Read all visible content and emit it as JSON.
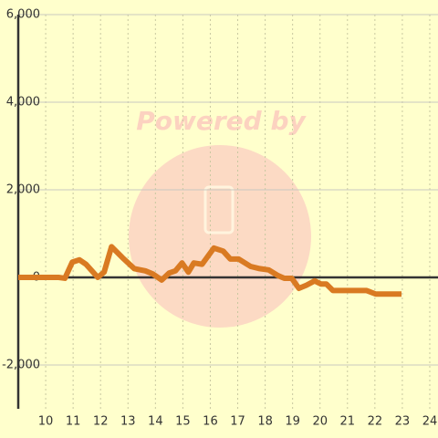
{
  "chart_data": {
    "type": "line",
    "watermark": "Powered by",
    "xlim": [
      9,
      24.3
    ],
    "xticks": [
      10,
      11,
      12,
      13,
      14,
      15,
      16,
      17,
      18,
      19,
      20,
      21,
      22,
      23,
      24
    ],
    "ylim": [
      -3000,
      6000
    ],
    "yticks": [
      {
        "value": -2000,
        "label": "-2,000"
      },
      0,
      {
        "value": 2000,
        "label": "2,000"
      },
      {
        "value": 4000,
        "label": "4,000"
      },
      {
        "value": 6000,
        "label": "6,000"
      }
    ],
    "grid": true,
    "series": [
      {
        "color": "#d97a22",
        "x": [
          9,
          10.47,
          10.7,
          10.97,
          11.23,
          11.47,
          11.9,
          12.13,
          12.4,
          12.8,
          13.23,
          13.63,
          13.9,
          14.23,
          14.5,
          14.73,
          14.97,
          15.2,
          15.4,
          15.7,
          16.13,
          16.47,
          16.73,
          17.03,
          17.47,
          17.8,
          18.13,
          18.47,
          18.7,
          18.97,
          19.23,
          19.5,
          19.8,
          20.03,
          20.23,
          20.47,
          20.97,
          21.7,
          22.03,
          22.97
        ],
        "values": [
          0,
          0,
          -20,
          350,
          400,
          300,
          0,
          120,
          700,
          450,
          200,
          150,
          80,
          -60,
          100,
          150,
          330,
          120,
          330,
          300,
          670,
          600,
          420,
          420,
          250,
          200,
          170,
          40,
          -20,
          -20,
          -250,
          -180,
          -80,
          -150,
          -150,
          -300,
          -300,
          -300,
          -380,
          -380
        ]
      }
    ]
  }
}
